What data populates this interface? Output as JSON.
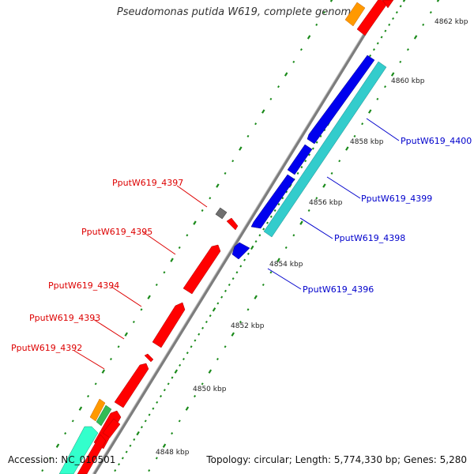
{
  "title": "Pseudomonas putida W619, complete genome",
  "footer": {
    "accession": "Accession: NC_010501",
    "summary": "Topology: circular; Length: 5,774,330 bp; Genes: 5,280"
  },
  "colors": {
    "forward_gene": "#ff0000",
    "reverse_gene": "#0000ee",
    "reverse_gene_2": "#33cccc",
    "gray_feature": "#707070",
    "orange_feature": "#ff9900",
    "teal_feature": "#33ffcc",
    "backbone": "#888888",
    "tick": "#008000",
    "forward_label": "#dd0000",
    "reverse_label": "#0000cc"
  },
  "scale_labels": [
    "4848 kbp",
    "4850 kbp",
    "4852 kbp",
    "4854 kbp",
    "4856 kbp",
    "4858 kbp",
    "4860 kbp",
    "4862 kbp"
  ],
  "labeled_genes": [
    {
      "name": "PputW619_4400",
      "strand": "reverse"
    },
    {
      "name": "PputW619_4399",
      "strand": "reverse"
    },
    {
      "name": "PputW619_4398",
      "strand": "reverse"
    },
    {
      "name": "PputW619_4396",
      "strand": "reverse"
    },
    {
      "name": "PputW619_4397",
      "strand": "forward"
    },
    {
      "name": "PputW619_4395",
      "strand": "forward"
    },
    {
      "name": "PputW619_4394",
      "strand": "forward"
    },
    {
      "name": "PputW619_4393",
      "strand": "forward"
    },
    {
      "name": "PputW619_4392",
      "strand": "forward"
    }
  ]
}
